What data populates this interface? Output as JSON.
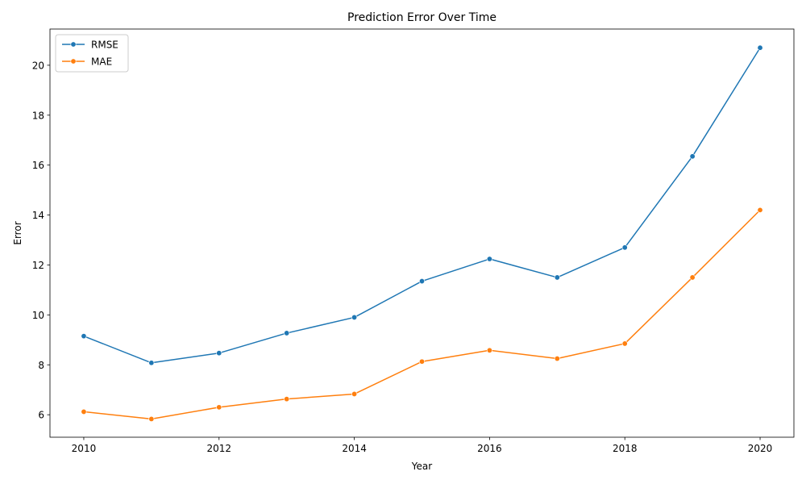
{
  "chart_data": {
    "type": "line",
    "title": "Prediction Error Over Time",
    "xlabel": "Year",
    "ylabel": "Error",
    "x": [
      2010,
      2011,
      2012,
      2013,
      2014,
      2015,
      2016,
      2017,
      2018,
      2019,
      2020
    ],
    "xticks": [
      2010,
      2012,
      2014,
      2016,
      2018,
      2020
    ],
    "yticks": [
      6,
      8,
      10,
      12,
      14,
      16,
      18,
      20
    ],
    "xlim": [
      2009.5,
      2020.5
    ],
    "ylim": [
      5.1,
      21.45
    ],
    "grid": false,
    "legend_position": "upper-left",
    "series": [
      {
        "name": "RMSE",
        "color": "#1f77b4",
        "marker": "circle",
        "values": [
          9.15,
          8.08,
          8.47,
          9.27,
          9.9,
          11.35,
          12.24,
          11.5,
          12.7,
          16.35,
          20.7
        ]
      },
      {
        "name": "MAE",
        "color": "#ff7f0e",
        "marker": "circle",
        "values": [
          6.12,
          5.83,
          6.3,
          6.63,
          6.83,
          8.13,
          8.58,
          8.25,
          8.85,
          11.5,
          14.2
        ]
      }
    ]
  }
}
